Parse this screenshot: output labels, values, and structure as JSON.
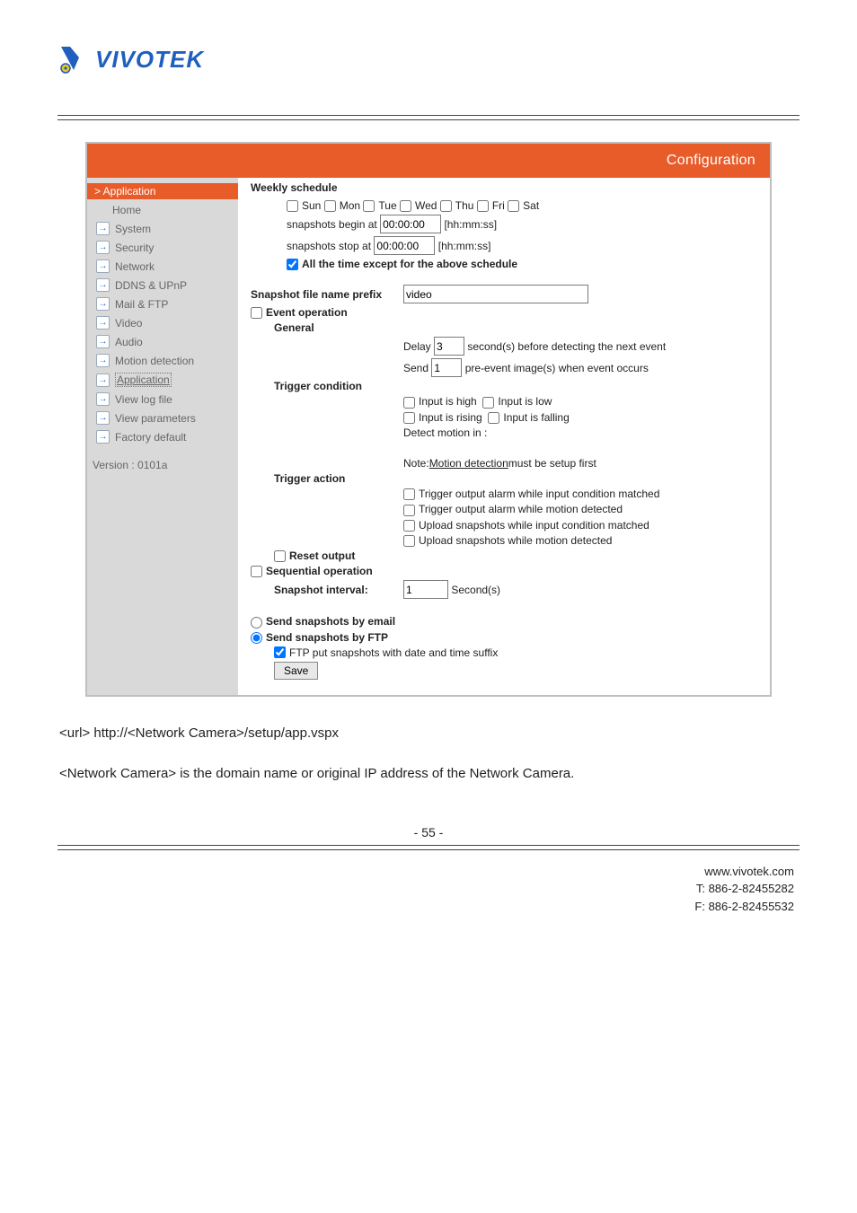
{
  "brand": {
    "name": "VIVOTEK",
    "accent": "#1f5fbf",
    "mark_primary": "#1f5fbf",
    "mark_accent": "#f0c420"
  },
  "panel": {
    "title": "Configuration",
    "header_bg": "#e85c2a",
    "sidebar_bg": "#d9d9d9",
    "breadcrumb": "> Application",
    "nav": {
      "home": "Home",
      "items": [
        {
          "label": "System"
        },
        {
          "label": "Security"
        },
        {
          "label": "Network"
        },
        {
          "label": "DDNS & UPnP"
        },
        {
          "label": "Mail & FTP"
        },
        {
          "label": "Video"
        },
        {
          "label": "Audio"
        },
        {
          "label": "Motion detection"
        },
        {
          "label": "Application"
        },
        {
          "label": "View log file"
        },
        {
          "label": "View parameters"
        },
        {
          "label": "Factory default"
        }
      ],
      "active_index": 8
    },
    "version": "Version : 0101a"
  },
  "form": {
    "weekly_schedule_title": "Weekly schedule",
    "days": {
      "sun": "Sun",
      "mon": "Mon",
      "tue": "Tue",
      "wed": "Wed",
      "thu": "Thu",
      "fri": "Fri",
      "sat": "Sat"
    },
    "snapshots_begin_label": "snapshots begin at",
    "snapshots_begin_value": "00:00:00",
    "snapshots_stop_label": "snapshots stop at",
    "snapshots_stop_value": "00:00:00",
    "time_hint": "[hh:mm:ss]",
    "all_time_except_label": "All the time except for the above schedule",
    "all_time_except_checked": true,
    "prefix_label": "Snapshot file name prefix",
    "prefix_value": "video",
    "event_operation_label": "Event operation",
    "general_label": "General",
    "delay_label": "Delay",
    "delay_value": "3",
    "delay_suffix": "second(s) before detecting the next event",
    "send_label": "Send",
    "send_value": "1",
    "send_suffix": "pre-event image(s) when event occurs",
    "trigger_condition_label": "Trigger condition",
    "input_high": "Input is high",
    "input_low": "Input is low",
    "input_rising": "Input is rising",
    "input_falling": "Input is falling",
    "detect_motion_in": "Detect motion in :",
    "note_prefix": "Note: ",
    "note_link": "Motion detection",
    "note_suffix": " must be setup first",
    "trigger_action_label": "Trigger action",
    "action_1": "Trigger output alarm while input condition matched",
    "action_2": "Trigger output alarm while motion detected",
    "action_3": "Upload snapshots while input condition matched",
    "action_4": "Upload snapshots while motion detected",
    "reset_output_label": "Reset output",
    "sequential_operation_label": "Sequential operation",
    "snapshot_interval_label": "Snapshot interval:",
    "snapshot_interval_value": "1",
    "snapshot_interval_unit": "Second(s)",
    "send_by_email": "Send snapshots by email",
    "send_by_ftp": "Send snapshots by FTP",
    "send_mode": "ftp",
    "ftp_suffix_label": "FTP put snapshots with date and time suffix",
    "ftp_suffix_checked": true,
    "save_button": "Save"
  },
  "copy": {
    "line1": "<url> http://<Network Camera>/setup/app.vspx",
    "line2": "<Network Camera> is the domain name or original IP address of the Network Camera."
  },
  "page_number": "- 55 -",
  "footer": {
    "url": "www.vivotek.com",
    "tel": "T: 886-2-82455282",
    "fax": "F: 886-2-82455532"
  }
}
